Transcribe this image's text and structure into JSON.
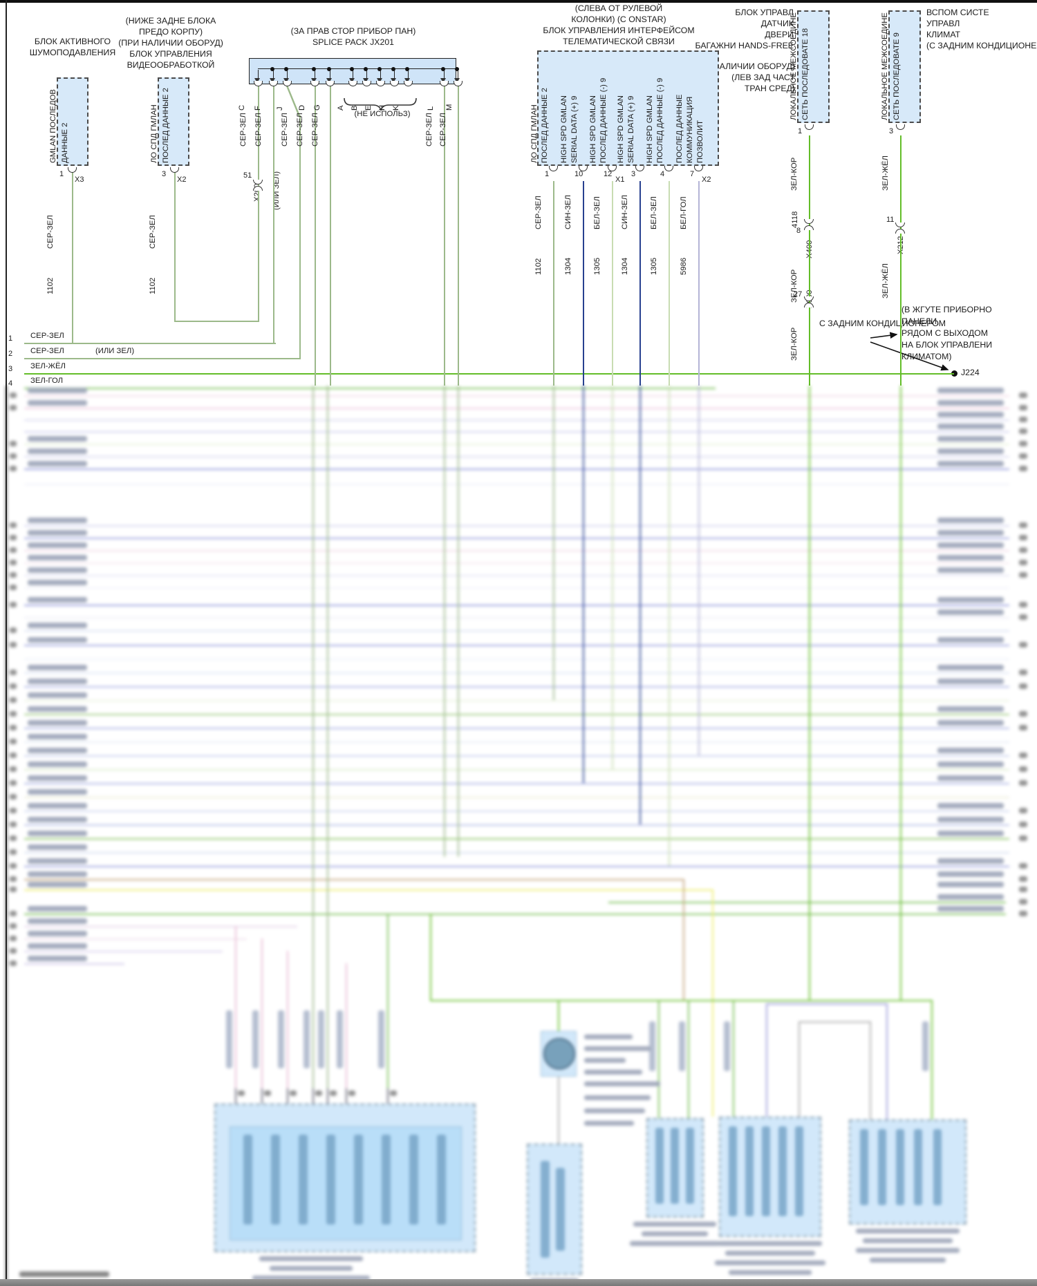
{
  "palette": {
    "ink": "#1c1c1c",
    "sage": "#9cb98a",
    "vivid": "#63bd28",
    "navy": "#27408f",
    "palegrn": "#c8dcb2",
    "lav": "#b4b4d6",
    "box_fill": "#d7e9f9",
    "splice_fill": "#cfe4f8",
    "peri": "#8f96d9",
    "peri2": "#9898d8",
    "lav2": "#d6d6f0",
    "pink": "#eec9de",
    "pink2": "#f2d9e7",
    "grn3": "#74bc52",
    "brown": "#c2a27a",
    "yellow": "#eded6a",
    "gray2": "#a9a9a9",
    "pinkw": "#e8b8d2"
  },
  "header_blocks": {
    "anc": {
      "title": [
        "БЛОК АКТИВНОГО",
        "ШУМОПОДАВЛЕНИЯ"
      ],
      "box": [
        "GMLAN ПОСЛЕДОВ",
        "ДАННЫЕ 2"
      ],
      "pin": "1",
      "conn": "X3",
      "wire": "СЕР-ЗЕЛ",
      "circuit": "1102"
    },
    "vpm": {
      "title": [
        "(НИЖЕ ЗАДНЕ БЛОКА",
        "ПРЕДО КОРПУ)",
        "(ПРИ НАЛИЧИИ ОБОРУД)",
        "БЛОК УПРАВЛЕНИЯ",
        "ВИДЕООБРАБОТКОЙ"
      ],
      "box": [
        "ЛО СПД ГМЛАН",
        "ПОСЛЕД ДАННЫЕ 2"
      ],
      "pin": "3",
      "conn": "X2",
      "wire": "СЕР-ЗЕЛ",
      "circuit": "1102"
    },
    "splice": {
      "title": [
        "(ЗА ПРАВ СТОР ПРИБОР ПАН)",
        "SPLICE PACK JX201"
      ],
      "pins": [
        "C",
        "F",
        "J",
        "D",
        "G",
        "A",
        "B",
        "E",
        "H",
        "K",
        "L",
        "M"
      ],
      "wire": "СЕР-ЗЕЛ",
      "unused": "(НЕ ИСПОЛЬЗ)",
      "alt": "(ИЛИ ЗЕЛ)",
      "inline_pin": "51",
      "inline_conn": "X200"
    },
    "telematics": {
      "title": [
        "(СЛЕВА ОТ РУЛЕВОЙ",
        "КОЛОНКИ) (С ONSTAR)",
        "БЛОК УПРАВЛЕНИЯ ИНТЕРФЕЙСОМ",
        "ТЕЛЕМАТИЧЕСКОЙ СВЯЗИ"
      ],
      "pins": [
        {
          "num": "1",
          "conn": "",
          "lines": [
            "ЛО СПД ГМЛАН",
            "ПОСЛЕД ДАННЫЕ 2"
          ],
          "wire": "СЕР-ЗЕЛ",
          "circuit": "1102",
          "color": "sage"
        },
        {
          "num": "10",
          "conn": "",
          "lines": [
            "HIGH SPD GMLAN",
            "SERIAL DATA (+) 9"
          ],
          "wire": "СИН-ЗЕЛ",
          "circuit": "1304",
          "color": "navy"
        },
        {
          "num": "12",
          "conn": "X1",
          "lines": [
            "HIGH SPD GMLAN",
            "ПОСЛЕД ДАННЫЕ (-) 9"
          ],
          "wire": "БЕЛ-ЗЕЛ",
          "circuit": "1305",
          "color": "palegrn"
        },
        {
          "num": "3",
          "conn": "",
          "lines": [
            "HIGH SPD GMLAN",
            "SERIAL DATA (+) 9"
          ],
          "wire": "СИН-ЗЕЛ",
          "circuit": "1304",
          "color": "navy"
        },
        {
          "num": "4",
          "conn": "",
          "lines": [
            "HIGH SPD GMLAN",
            "ПОСЛЕД ДАННЫЕ (-) 9"
          ],
          "wire": "БЕЛ-ЗЕЛ",
          "circuit": "1305",
          "color": "palegrn"
        },
        {
          "num": "7",
          "conn": "X2",
          "lines": [
            "ПОСЛЕД ДАННЫЕ",
            "КОММУНИКАЦИЯ",
            "ПОЗВОЛИТ"
          ],
          "wire": "БЕЛ-ГОЛ",
          "circuit": "5986",
          "color": "lav"
        }
      ]
    },
    "door": {
      "title": [
        "БЛОК УПРАВЛ",
        "ДАТЧИК",
        "ДВЕРИ",
        "БАГАЖНИ HANDS-FREE"
      ],
      "note": [
        "(ПРИ НАЛИЧИИ ОБОРУД)",
        "(ЛЕВ ЗАД ЧАСТ",
        "ТРАН СРЕД)"
      ],
      "box": [
        "ЛОКАЛЬНОЕ МЕЖСОЕДИНЕ",
        "СЕТЬ ПОСЛЕДОВАТЕ 18"
      ],
      "pin": "1",
      "wire": "ЗЕЛ-КОР",
      "circuit": "4118",
      "conn1_pin": "8",
      "conn1": "X400",
      "conn2_pin": "27",
      "conn2": "X900"
    },
    "climate": {
      "title": [
        "ВСПОМ СИСТЕ",
        "УПРАВЛ",
        "КЛИМАТ",
        "(С ЗАДНИМ КОНДИЦИОНЕ"
      ],
      "box": [
        "ЛОКАЛЬНОЕ МЕЖСОЕДИНЕ",
        "СЕТЬ ПОСЛЕДОВАТЕ 9"
      ],
      "pin": "3",
      "wire": "ЗЕЛ-ЖЁЛ",
      "conn1_pin": "11",
      "conn1": "X212"
    }
  },
  "rows": [
    {
      "n": "1",
      "label": "СЕР-ЗЕЛ",
      "alt": ""
    },
    {
      "n": "2",
      "label": "СЕР-ЗЕЛ",
      "alt": "(ИЛИ ЗЕЛ)"
    },
    {
      "n": "3",
      "label": "ЗЕЛ-ЖЁЛ",
      "alt": ""
    },
    {
      "n": "4",
      "label": "ЗЕЛ-ГОЛ",
      "alt": ""
    }
  ],
  "notes": {
    "rear_ac": "С ЗАДНИМ КОНДИЦИОНЕРОМ",
    "harness": [
      "(В ЖГУТЕ ПРИБОРНО",
      "ПАНЕЛИ,",
      "РЯДОМ С ВЫХОДОМ",
      "НА БЛОК УПРАВЛЕНИ",
      "КЛИМАТОМ)"
    ],
    "junction": "J224"
  }
}
